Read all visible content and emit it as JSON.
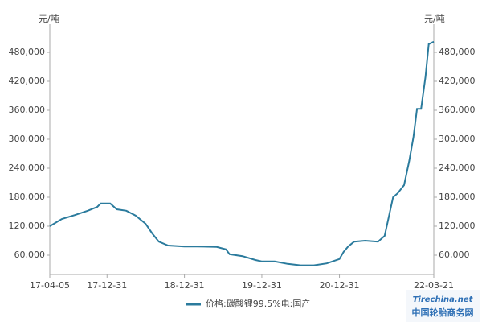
{
  "chart_data": {
    "type": "line",
    "y_unit": "元/吨",
    "x": [
      "17-04-05",
      "17-06-01",
      "17-08-01",
      "17-10-01",
      "17-11-15",
      "17-12-01",
      "18-01-15",
      "18-02-15",
      "18-04-01",
      "18-05-15",
      "18-07-01",
      "18-08-01",
      "18-09-01",
      "18-10-15",
      "18-12-31",
      "19-03-01",
      "19-06-01",
      "19-07-15",
      "19-08-01",
      "19-10-01",
      "19-12-01",
      "20-01-01",
      "20-03-01",
      "20-05-01",
      "20-07-01",
      "20-09-01",
      "20-11-01",
      "20-12-31",
      "21-01-20",
      "21-02-10",
      "21-03-10",
      "21-05-01",
      "21-07-01",
      "21-08-01",
      "21-08-20",
      "21-09-10",
      "21-10-01",
      "21-11-01",
      "21-11-25",
      "21-12-15",
      "22-01-01",
      "22-01-20",
      "22-02-10",
      "22-02-25",
      "22-03-21"
    ],
    "series": [
      {
        "name": "价格:碳酸锂99.5%电:国产",
        "color": "#2b7b9d",
        "values": [
          120000,
          135000,
          143000,
          152000,
          160000,
          167000,
          167000,
          155000,
          152000,
          142000,
          125000,
          105000,
          88000,
          80000,
          78000,
          78000,
          77000,
          72000,
          62000,
          58000,
          50000,
          47000,
          47000,
          42000,
          39000,
          39000,
          43000,
          52000,
          67000,
          78000,
          88000,
          90000,
          88000,
          100000,
          138000,
          180000,
          188000,
          205000,
          255000,
          305000,
          363000,
          363000,
          430000,
          497000,
          502000
        ]
      }
    ],
    "xlim": [
      "17-04-05",
      "22-03-21"
    ],
    "xticks": [
      "17-04-05",
      "17-12-31",
      "18-12-31",
      "19-12-31",
      "20-12-31",
      "22-03-21"
    ],
    "ylim": [
      20000,
      520000
    ],
    "yticks": [
      {
        "value": 60000,
        "label": "60,000"
      },
      {
        "value": 120000,
        "label": "120,000"
      },
      {
        "value": 180000,
        "label": "180,000"
      },
      {
        "value": 240000,
        "label": "240,000"
      },
      {
        "value": 300000,
        "label": "300,000"
      },
      {
        "value": 360000,
        "label": "360,000"
      },
      {
        "value": 420000,
        "label": "420,000"
      },
      {
        "value": 480000,
        "label": "480,000"
      }
    ],
    "grid": false,
    "legend": "bottom",
    "watermark": "中国轮胎商务网",
    "watermark_site": "Tirechina.net"
  }
}
